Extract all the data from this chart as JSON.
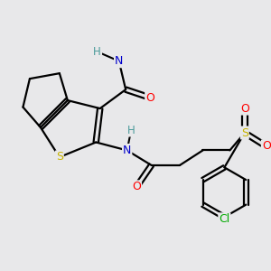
{
  "background_color": "#e8e8ea",
  "bond_color": "#000000",
  "atom_colors": {
    "S": "#c8b400",
    "O": "#ff0000",
    "N": "#0000cc",
    "Cl": "#00aa00",
    "H": "#4a9a9a",
    "C": "#000000"
  },
  "figsize": [
    3.0,
    3.0
  ],
  "dpi": 100
}
